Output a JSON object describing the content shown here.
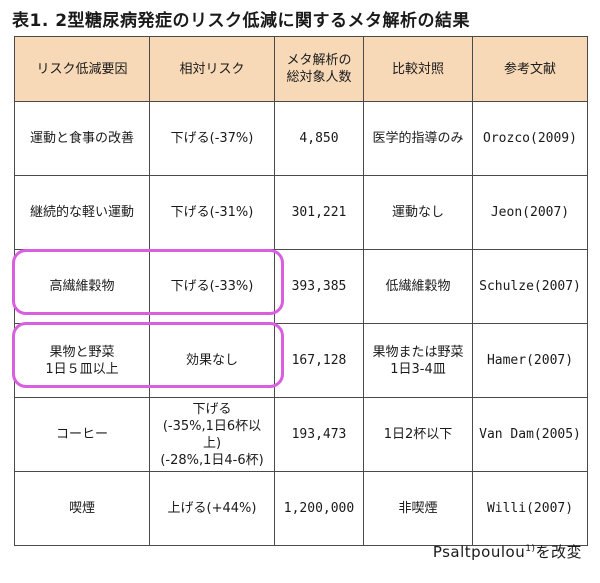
{
  "title": "表1. 2型糖尿病発症のリスク低減に関するメタ解析の結果",
  "table": {
    "headers": [
      "リスク低減要因",
      "相対リスク",
      "メタ解析の\n総対象人数",
      "比較対照",
      "参考文献"
    ],
    "rows": [
      {
        "factor": "運動と食事の改善",
        "risk": "下げる(-37%)",
        "n": "4,850",
        "control": "医学的指導のみ",
        "ref": "Orozco(2009)"
      },
      {
        "factor": "継続的な軽い運動",
        "risk": "下げる(-31%)",
        "n": "301,221",
        "control": "運動なし",
        "ref": "Jeon(2007)"
      },
      {
        "factor": "高繊維穀物",
        "risk": "下げる(-33%)",
        "n": "393,385",
        "control": "低繊維穀物",
        "ref": "Schulze(2007)"
      },
      {
        "factor": "果物と野菜\n1日５皿以上",
        "risk": "効果なし",
        "n": "167,128",
        "control": "果物または野菜\n1日3-4皿",
        "ref": "Hamer(2007)"
      },
      {
        "factor": "コーヒー",
        "risk": "下げる\n(-35%,1日6杯以上)\n(-28%,1日4-6杯)",
        "n": "193,473",
        "control": "1日2杯以下",
        "ref": "Van Dam(2005)"
      },
      {
        "factor": "喫煙",
        "risk": "上げる(+44%)",
        "n": "1,200,000",
        "control": "非喫煙",
        "ref": "Willi(2007)"
      }
    ]
  },
  "highlighted_rows": [
    "高繊維穀物",
    "果物と野菜\n1日５皿以上"
  ],
  "highlight_color": "#d95ee0",
  "header_color": "#f7d9b8",
  "source": {
    "author": "Psaltpoulou",
    "superscript": "1)",
    "suffix": "を改変"
  }
}
